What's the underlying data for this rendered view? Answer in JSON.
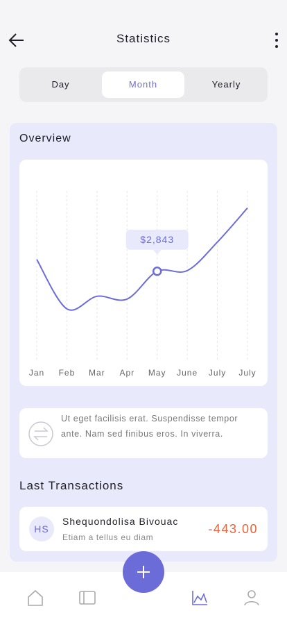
{
  "header": {
    "title": "Statistics"
  },
  "tabs": [
    "Day",
    "Month",
    "Yearly"
  ],
  "overview": {
    "title": "Overview"
  },
  "chart_data": {
    "type": "line",
    "categories": [
      "Jan",
      "Feb",
      "Mar",
      "Apr",
      "May",
      "June",
      "July",
      "July"
    ],
    "values": [
      3218,
      1653,
      2050,
      1962,
      2843,
      2865,
      3769,
      4849
    ],
    "color": "#6c6cd9",
    "ylim": [
      0,
      5500
    ],
    "highlight": {
      "index": 4,
      "label": "$2,843"
    }
  },
  "info": {
    "text": "Ut eget facilisis erat. Suspendisse tempor ante. Nam sed finibus eros. In viverra."
  },
  "transactions": {
    "title": "Last Transactions",
    "items": [
      {
        "initials": "HS",
        "name": "Shequondolisa Bivouac",
        "note": "Etiam a tellus eu diam",
        "amount": "-443.00"
      }
    ]
  }
}
